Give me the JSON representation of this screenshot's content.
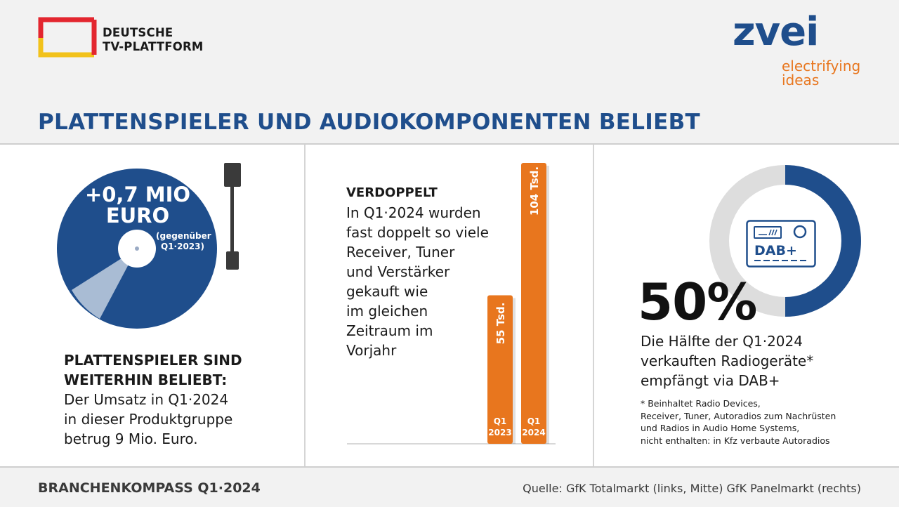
{
  "header": {
    "logo_left": {
      "line1": "DEUTSCHE",
      "line2": "TV-PLATTFORM"
    },
    "logo_right": {
      "word": "zvei",
      "tag_line1": "electrifying",
      "tag_line2": "ideas"
    },
    "title": "PLATTENSPIELER UND AUDIOKOMPONENTEN BELIEBT"
  },
  "left_panel": {
    "stat_line1": "+0,7 MIO",
    "stat_line2": "EURO",
    "stat_note1": "(gegenüber",
    "stat_note2": "Q1·2023)",
    "heading1": "PLATTENSPIELER SIND",
    "heading2": "WEITERHIN BELIEBT:",
    "body": [
      "Der Umsatz in Q1·2024",
      "in dieser Produktgruppe",
      "betrug 9 Mio. Euro."
    ]
  },
  "middle_panel": {
    "heading": "VERDOPPELT",
    "body": [
      "In Q1·2024 wurden",
      "fast doppelt so viele",
      "Receiver, Tuner",
      "und Verstärker",
      "gekauft wie",
      "im gleichen",
      "Zeitraum im",
      "Vorjahr"
    ]
  },
  "right_panel": {
    "icon_label": "DAB+",
    "percent_label": "50%",
    "description": [
      "Die Hälfte der Q1·2024",
      "verkauften Radiogeräte*",
      "empfängt via DAB+"
    ],
    "footnote": [
      "* Beinhaltet Radio Devices,",
      "Receiver, Tuner, Autoradios zum Nachrüsten",
      "und Radios in Audio Home Systems,",
      "nicht enthalten: in Kfz verbaute Autoradios"
    ]
  },
  "footer": {
    "left": "BRANCHENKOMPASS Q1·2024",
    "right": "Quelle: GfK Totalmarkt (links, Mitte) GfK Panelmarkt (rechts)"
  },
  "colors": {
    "brand_blue": "#1f4e8c",
    "bar_orange": "#e8761e",
    "ring_grey": "#dddddd"
  },
  "chart_data": [
    {
      "type": "bar",
      "categories": [
        "Q1 2023",
        "Q1 2024"
      ],
      "category_lines": [
        [
          "Q1",
          "2023"
        ],
        [
          "Q1",
          "2024"
        ]
      ],
      "values": [
        55,
        104
      ],
      "value_labels": [
        "55 Tsd.",
        "104 Tsd."
      ],
      "unit": "Tsd.",
      "ylim": [
        0,
        104
      ]
    },
    {
      "type": "pie",
      "variant": "donut",
      "labels": [
        "DAB+"
      ],
      "values": [
        50
      ],
      "total": 100,
      "display_label": "50%"
    }
  ]
}
